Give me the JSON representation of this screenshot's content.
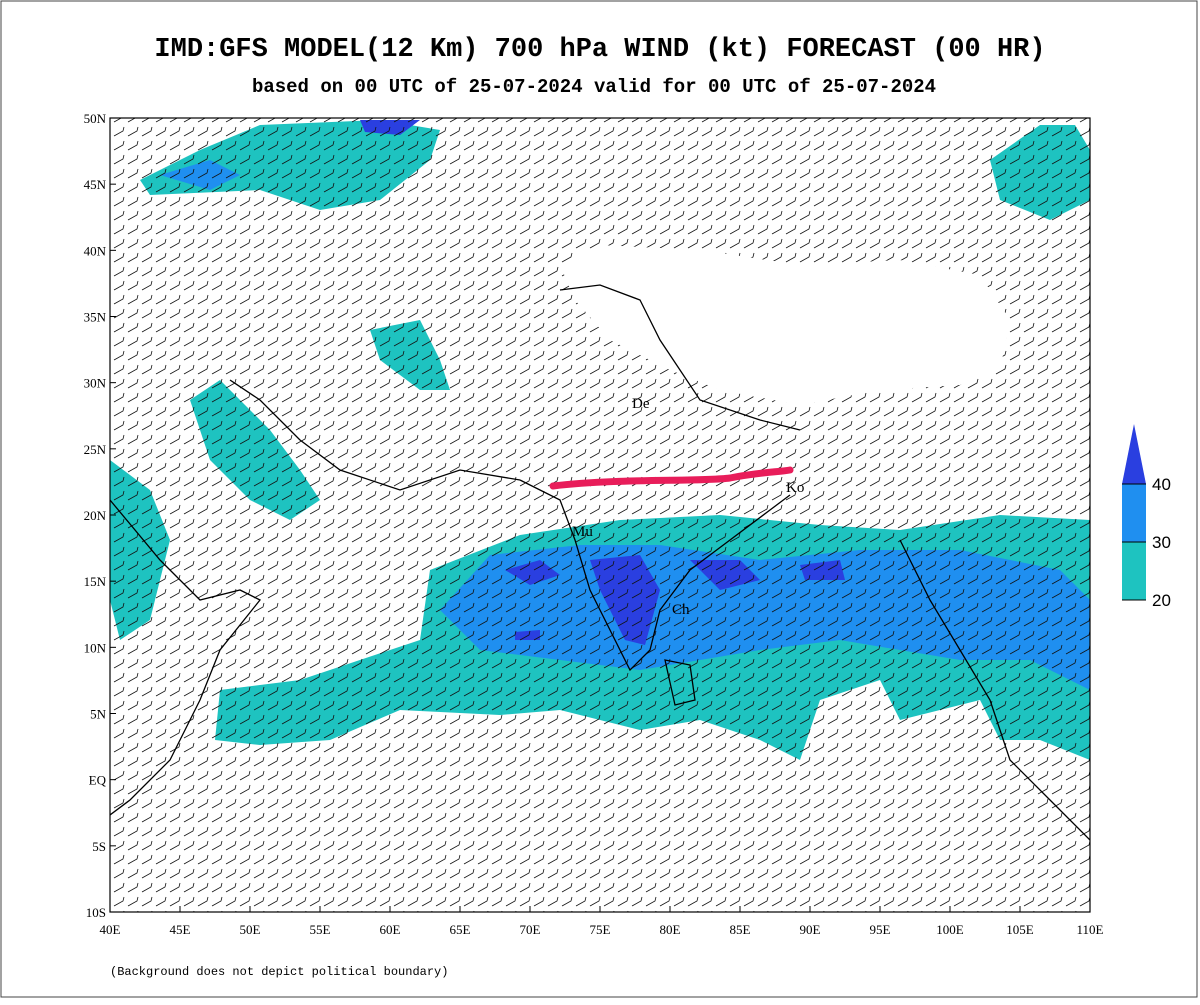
{
  "header": {
    "title": "IMD:GFS MODEL(12 Km) 700 hPa WIND (kt) FORECAST (00 HR)",
    "subtitle": "based on 00 UTC of 25-07-2024 valid for 00 UTC of 25-07-2024"
  },
  "map": {
    "xlim": [
      40,
      110
    ],
    "ylim": [
      -10,
      50
    ],
    "xticks": [
      {
        "value": 40,
        "label": "40E"
      },
      {
        "value": 45,
        "label": "45E"
      },
      {
        "value": 50,
        "label": "50E"
      },
      {
        "value": 55,
        "label": "55E"
      },
      {
        "value": 60,
        "label": "60E"
      },
      {
        "value": 65,
        "label": "65E"
      },
      {
        "value": 70,
        "label": "70E"
      },
      {
        "value": 75,
        "label": "75E"
      },
      {
        "value": 80,
        "label": "80E"
      },
      {
        "value": 85,
        "label": "85E"
      },
      {
        "value": 90,
        "label": "90E"
      },
      {
        "value": 95,
        "label": "95E"
      },
      {
        "value": 100,
        "label": "100E"
      },
      {
        "value": 105,
        "label": "105E"
      },
      {
        "value": 110,
        "label": "110E"
      }
    ],
    "yticks": [
      {
        "value": -10,
        "label": "10S"
      },
      {
        "value": -5,
        "label": "5S"
      },
      {
        "value": 0,
        "label": "EQ"
      },
      {
        "value": 5,
        "label": "5N"
      },
      {
        "value": 10,
        "label": "10N"
      },
      {
        "value": 15,
        "label": "15N"
      },
      {
        "value": 20,
        "label": "20N"
      },
      {
        "value": 25,
        "label": "25N"
      },
      {
        "value": 30,
        "label": "30N"
      },
      {
        "value": 35,
        "label": "35N"
      },
      {
        "value": 40,
        "label": "40N"
      },
      {
        "value": 45,
        "label": "45N"
      },
      {
        "value": 50,
        "label": "50N"
      }
    ],
    "places": [
      "De",
      "Mu",
      "Ko",
      "Ch"
    ]
  },
  "legend": {
    "levels": [
      20,
      30,
      40
    ],
    "colors": [
      "#1ec3c0",
      "#1f8ff0",
      "#2a3fe0"
    ]
  },
  "footnote": "(Background does not depict political boundary)"
}
